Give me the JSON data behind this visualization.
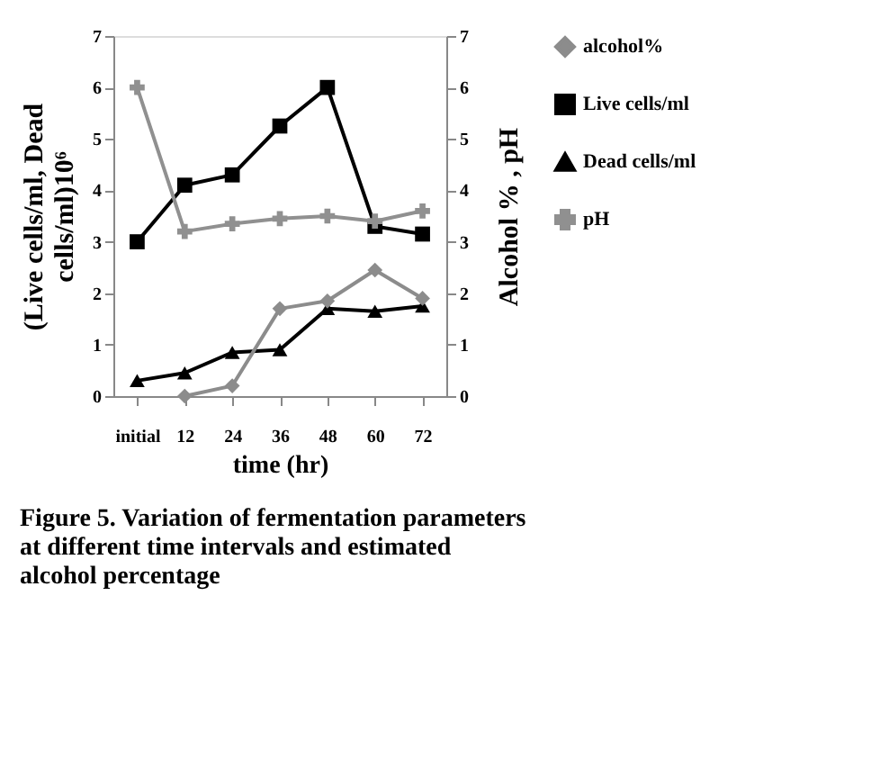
{
  "chart_data": {
    "type": "line",
    "categories": [
      "initial",
      "12",
      "24",
      "36",
      "48",
      "60",
      "72"
    ],
    "xlabel": "time (hr)",
    "ylabel": "(Live cells/ml, Dead cells/ml)10⁶",
    "y2label": "Alcohol % , pH",
    "ylim": [
      0,
      7
    ],
    "yticks": [
      0,
      1,
      2,
      3,
      4,
      5,
      6,
      7
    ],
    "y2lim": [
      0,
      7
    ],
    "y2ticks": [
      0,
      1,
      2,
      3,
      4,
      5,
      6,
      7
    ],
    "series": [
      {
        "name": "alcohol%",
        "color": "#8c8c8c",
        "marker": "diamond",
        "axis": "y2",
        "values": [
          null,
          0,
          0.2,
          1.7,
          1.85,
          2.45,
          1.9
        ]
      },
      {
        "name": "Live cells/ml",
        "color": "#000000",
        "marker": "square",
        "values": [
          3,
          4.1,
          4.3,
          5.25,
          6,
          3.3,
          3.15
        ]
      },
      {
        "name": "Dead cells/ml",
        "color": "#000000",
        "marker": "triangle",
        "values": [
          0.3,
          0.45,
          0.85,
          0.9,
          1.7,
          1.65,
          1.75
        ]
      },
      {
        "name": "pH",
        "color": "#909090",
        "marker": "cross",
        "axis": "y2",
        "values": [
          6,
          3.2,
          3.35,
          3.45,
          3.5,
          3.4,
          3.6
        ]
      }
    ],
    "legend": "right",
    "grid": false,
    "annotations": [
      "Figure 5.  Variation of fermentation parameters at different time intervals and estimated alcohol percentage"
    ]
  }
}
